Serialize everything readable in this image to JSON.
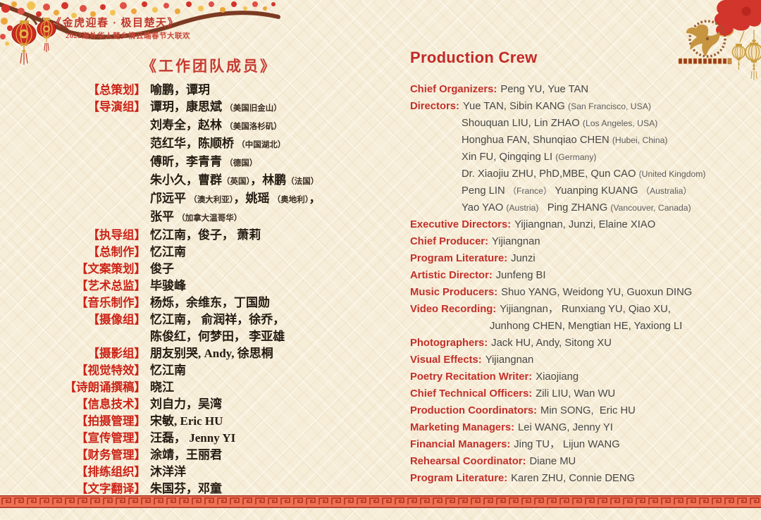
{
  "header": {
    "event_title": "《金虎迎春 · 极目楚天》",
    "event_subtitle": "2022海外华人楚乡情云端春节大联欢"
  },
  "left": {
    "title": "《工作团队成员》",
    "rows": [
      {
        "label": "【总策划】",
        "lines": [
          [
            {
              "t": "喻鹏，谭玥"
            }
          ]
        ]
      },
      {
        "label": "【导演组】",
        "lines": [
          [
            {
              "t": "谭玥，康思斌 "
            },
            {
              "t": "（美国旧金山）",
              "s": true
            }
          ],
          [
            {
              "t": "刘寿全，赵林 "
            },
            {
              "t": "（美国洛杉矶）",
              "s": true
            }
          ],
          [
            {
              "t": "范红华，陈顺桥 "
            },
            {
              "t": "（中国湖北）",
              "s": true
            }
          ],
          [
            {
              "t": "傅昕，李青青 "
            },
            {
              "t": "（德国）",
              "s": true
            }
          ],
          [
            {
              "t": "朱小久，曹群"
            },
            {
              "t": "（英国）",
              "s": true
            },
            {
              "t": "，林鹏"
            },
            {
              "t": "（法国）",
              "s": true
            }
          ],
          [
            {
              "t": "邝远平 "
            },
            {
              "t": "（澳大利亚）",
              "s": true
            },
            {
              "t": "，姚瑶 "
            },
            {
              "t": "（奥地利）",
              "s": true
            },
            {
              "t": "，"
            }
          ],
          [
            {
              "t": "张平 "
            },
            {
              "t": "（加拿大温哥华）",
              "s": true
            }
          ]
        ]
      },
      {
        "label": "【执导组】",
        "lines": [
          [
            {
              "t": "忆江南，俊子， 萧莉"
            }
          ]
        ]
      },
      {
        "label": "【总制作】",
        "lines": [
          [
            {
              "t": "忆江南"
            }
          ]
        ]
      },
      {
        "label": "【文案策划】",
        "lines": [
          [
            {
              "t": "俊子"
            }
          ]
        ]
      },
      {
        "label": "【艺术总监】",
        "lines": [
          [
            {
              "t": "毕骏峰"
            }
          ]
        ]
      },
      {
        "label": "【音乐制作】",
        "lines": [
          [
            {
              "t": "杨烁，余维东，丁国勋"
            }
          ]
        ]
      },
      {
        "label": "【摄像组】",
        "lines": [
          [
            {
              "t": "忆江南， 俞润祥，徐乔，"
            }
          ],
          [
            {
              "t": "陈俊红，何梦田， 李亚雄"
            }
          ]
        ]
      },
      {
        "label": "【摄影组】",
        "lines": [
          [
            {
              "t": "朋友别哭, Andy, 徐思桐"
            }
          ]
        ]
      },
      {
        "label": "【视觉特效】",
        "lines": [
          [
            {
              "t": "忆江南"
            }
          ]
        ]
      },
      {
        "label": "【诗朗诵撰稿】",
        "lines": [
          [
            {
              "t": "晓江"
            }
          ]
        ]
      },
      {
        "label": "【信息技术】",
        "lines": [
          [
            {
              "t": "刘自力，吴湾"
            }
          ]
        ]
      },
      {
        "label": "【拍摄管理】",
        "lines": [
          [
            {
              "t": "宋敏, Eric HU"
            }
          ]
        ]
      },
      {
        "label": "【宣传管理】",
        "lines": [
          [
            {
              "t": "汪磊， Jenny YI"
            }
          ]
        ]
      },
      {
        "label": "【财务管理】",
        "lines": [
          [
            {
              "t": "涂靖，王丽君"
            }
          ]
        ]
      },
      {
        "label": "【排练组织】",
        "lines": [
          [
            {
              "t": "沐洋洋"
            }
          ]
        ]
      },
      {
        "label": "【文字翻译】",
        "lines": [
          [
            {
              "t": "朱国芬，邓童"
            }
          ]
        ]
      }
    ]
  },
  "right": {
    "title": "Production Crew",
    "rows": [
      {
        "label": "Chief Organizers:",
        "lines": [
          {
            "segs": [
              {
                "t": "Peng YU, Yue TAN"
              }
            ]
          }
        ]
      },
      {
        "label": "Directors:",
        "lines": [
          {
            "segs": [
              {
                "t": "Yue TAN, Sibin KANG "
              },
              {
                "t": "(San Francisco, USA)",
                "s": true
              }
            ]
          },
          {
            "pad": 73,
            "segs": [
              {
                "t": "Shouquan LIU, Lin ZHAO "
              },
              {
                "t": "(Los Angeles, USA)",
                "s": true
              }
            ]
          },
          {
            "pad": 73,
            "segs": [
              {
                "t": "Honghua FAN, Shunqiao CHEN "
              },
              {
                "t": "(Hubei, China)",
                "s": true
              }
            ]
          },
          {
            "pad": 73,
            "segs": [
              {
                "t": "Xin FU, Qingqing LI "
              },
              {
                "t": "(Germany)",
                "s": true
              }
            ]
          },
          {
            "pad": 73,
            "segs": [
              {
                "t": "Dr. Xiaojiu ZHU, PhD,MBE, Qun CAO "
              },
              {
                "t": "(United Kingdom)",
                "s": true
              }
            ]
          },
          {
            "pad": 73,
            "segs": [
              {
                "t": "Peng LIN "
              },
              {
                "t": "（France）",
                "s": true
              },
              {
                "t": " Yuanping KUANG "
              },
              {
                "t": "（Australia）",
                "s": true
              }
            ]
          },
          {
            "pad": 73,
            "segs": [
              {
                "t": "Yao YAO "
              },
              {
                "t": "(Austria)",
                "s": true
              },
              {
                "t": "   Ping ZHANG "
              },
              {
                "t": "(Vancouver, Canada)",
                "s": true
              }
            ]
          }
        ]
      },
      {
        "label": "Executive Directors:",
        "lines": [
          {
            "segs": [
              {
                "t": "Yijiangnan, Junzi, Elaine XIAO"
              }
            ]
          }
        ]
      },
      {
        "label": "Chief Producer:",
        "lines": [
          {
            "segs": [
              {
                "t": "Yijiangnan"
              }
            ]
          }
        ]
      },
      {
        "label": "Program Literature:",
        "lines": [
          {
            "segs": [
              {
                "t": "Junzi"
              }
            ]
          }
        ]
      },
      {
        "label": "Artistic Director:",
        "lines": [
          {
            "segs": [
              {
                "t": "Junfeng BI"
              }
            ]
          }
        ]
      },
      {
        "label": "Music Producers:",
        "lines": [
          {
            "segs": [
              {
                "t": "Shuo YANG, Weidong YU, Guoxun DING"
              }
            ]
          }
        ]
      },
      {
        "label": "Video Recording:",
        "lines": [
          {
            "segs": [
              {
                "t": "Yijiangnan， Runxiang YU, Qiao XU,"
              }
            ]
          },
          {
            "pad": 113,
            "segs": [
              {
                "t": "Junhong CHEN, Mengtian HE, Yaxiong LI"
              }
            ]
          }
        ]
      },
      {
        "label": "Photographers:",
        "lines": [
          {
            "segs": [
              {
                "t": "Jack HU, Andy, Sitong XU"
              }
            ]
          }
        ]
      },
      {
        "label": "Visual Effects:",
        "lines": [
          {
            "segs": [
              {
                "t": "Yijiangnan"
              }
            ]
          }
        ]
      },
      {
        "label": "Poetry Recitation Writer:",
        "lines": [
          {
            "segs": [
              {
                "t": "Xiaojiang"
              }
            ]
          }
        ]
      },
      {
        "label": "Chief Technical Officers:",
        "lines": [
          {
            "segs": [
              {
                "t": "Zili LIU, Wan WU"
              }
            ]
          }
        ]
      },
      {
        "label": "Production Coordinators:",
        "lines": [
          {
            "segs": [
              {
                "t": "Min SONG,  Eric HU"
              }
            ]
          }
        ]
      },
      {
        "label": "Marketing Managers:",
        "lines": [
          {
            "segs": [
              {
                "t": "Lei WANG, Jenny YI"
              }
            ]
          }
        ]
      },
      {
        "label": "Financial Managers:",
        "lines": [
          {
            "segs": [
              {
                "t": "Jing TU， Lijun WANG"
              }
            ]
          }
        ]
      },
      {
        "label": "Rehearsal Coordinator:",
        "lines": [
          {
            "segs": [
              {
                "t": "Diane MU"
              }
            ]
          }
        ]
      },
      {
        "label": "Program Literature:",
        "lines": [
          {
            "segs": [
              {
                "t": "Karen ZHU, Connie DENG"
              }
            ]
          }
        ]
      }
    ]
  },
  "colors": {
    "accent_red": "#c5382e",
    "label_red": "#cc2418",
    "english_label_red": "#c2302a",
    "text_dark": "#241b12",
    "gold": "#d9a33c",
    "border_band_red": "#ef7153",
    "background_cream": "#f7eeda"
  }
}
